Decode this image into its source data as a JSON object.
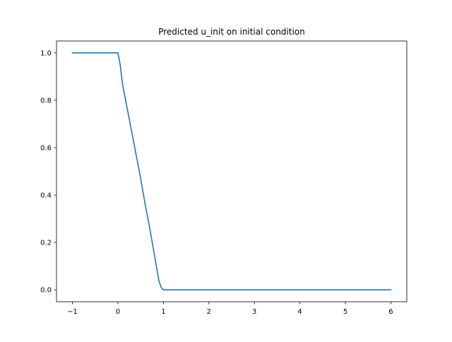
{
  "chart_data": {
    "type": "line",
    "title": "Predicted u_init on initial condition",
    "xlabel": "",
    "ylabel": "",
    "xlim": [
      -1.35,
      6.35
    ],
    "ylim": [
      -0.05,
      1.05
    ],
    "xticks": [
      -1,
      0,
      1,
      2,
      3,
      4,
      5,
      6
    ],
    "xtick_labels": [
      "−1",
      "0",
      "1",
      "2",
      "3",
      "4",
      "5",
      "6"
    ],
    "yticks": [
      0.0,
      0.2,
      0.4,
      0.6,
      0.8,
      1.0
    ],
    "ytick_labels": [
      "0.0",
      "0.2",
      "0.4",
      "0.6",
      "0.8",
      "1.0"
    ],
    "grid": false,
    "legend": "none",
    "series": [
      {
        "color": "#1f77b4",
        "x": [
          -1,
          0,
          0.05,
          0.1,
          0.2,
          0.3,
          0.4,
          0.5,
          0.6,
          0.7,
          0.8,
          0.9,
          0.95,
          1.0,
          1.05,
          2,
          3,
          4,
          5,
          6
        ],
        "y": [
          1.0,
          1.0,
          0.95,
          0.87,
          0.77,
          0.67,
          0.57,
          0.47,
          0.36,
          0.26,
          0.15,
          0.04,
          0.01,
          0.0,
          0.0,
          0.0,
          0.0,
          0.0,
          0.0,
          0.0
        ]
      }
    ]
  }
}
